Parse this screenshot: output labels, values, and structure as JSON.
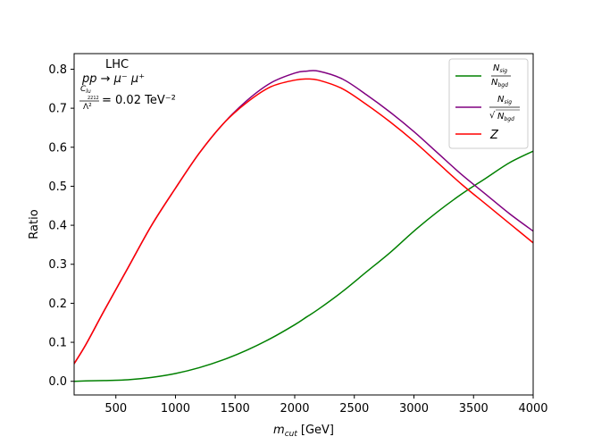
{
  "chart_data": {
    "type": "line",
    "title": "",
    "xlabel": "m_cut [GeV]",
    "xlabel_main": "m",
    "xlabel_sub": "cut",
    "xlabel_unit": "[GeV]",
    "ylabel": "Ratio",
    "xlim": [
      150,
      4000
    ],
    "ylim": [
      -0.035,
      0.84
    ],
    "xticks": [
      500,
      1000,
      1500,
      2000,
      2500,
      3000,
      3500,
      4000
    ],
    "yticks": [
      0.0,
      0.1,
      0.2,
      0.3,
      0.4,
      0.5,
      0.6,
      0.7,
      0.8
    ],
    "grid": false,
    "legend_position": "top-right",
    "annotations": {
      "collider": "LHC",
      "process": "pp → μ⁻ μ⁺",
      "coupling_numerator": "C",
      "coupling_sub": "lu",
      "coupling_subsub": "2212",
      "coupling_denominator": "Λ²",
      "coupling_value": "= 0.02 TeV⁻²"
    },
    "x": [
      150,
      250,
      400,
      600,
      800,
      1000,
      1200,
      1400,
      1600,
      1800,
      2000,
      2100,
      2200,
      2400,
      2600,
      2800,
      3000,
      3200,
      3400,
      3600,
      3800,
      4000
    ],
    "series": [
      {
        "name": "N_sig / N_bgd",
        "legend_num": "N",
        "legend_num_sub": "sig",
        "legend_den": "N",
        "legend_den_sub": "bgd",
        "color": "#008000",
        "values": [
          0.0,
          0.001,
          0.002,
          0.004,
          0.01,
          0.02,
          0.035,
          0.055,
          0.08,
          0.11,
          0.145,
          0.165,
          0.185,
          0.23,
          0.28,
          0.33,
          0.385,
          0.435,
          0.48,
          0.52,
          0.56,
          0.59
        ]
      },
      {
        "name": "N_sig / √N_bgd",
        "legend_num": "N",
        "legend_num_sub": "sig",
        "legend_den": "N",
        "legend_den_sub": "bgd",
        "legend_sqrt": "√",
        "color": "#800080",
        "values": [
          0.045,
          0.095,
          0.18,
          0.29,
          0.4,
          0.495,
          0.585,
          0.66,
          0.72,
          0.765,
          0.79,
          0.795,
          0.795,
          0.775,
          0.735,
          0.69,
          0.64,
          0.585,
          0.53,
          0.48,
          0.43,
          0.385
        ]
      },
      {
        "name": "Z",
        "legend_label": "Z",
        "color": "#ff0000",
        "values": [
          0.045,
          0.095,
          0.18,
          0.29,
          0.4,
          0.495,
          0.585,
          0.66,
          0.715,
          0.755,
          0.772,
          0.775,
          0.772,
          0.75,
          0.71,
          0.665,
          0.615,
          0.56,
          0.505,
          0.455,
          0.405,
          0.355
        ]
      }
    ]
  }
}
